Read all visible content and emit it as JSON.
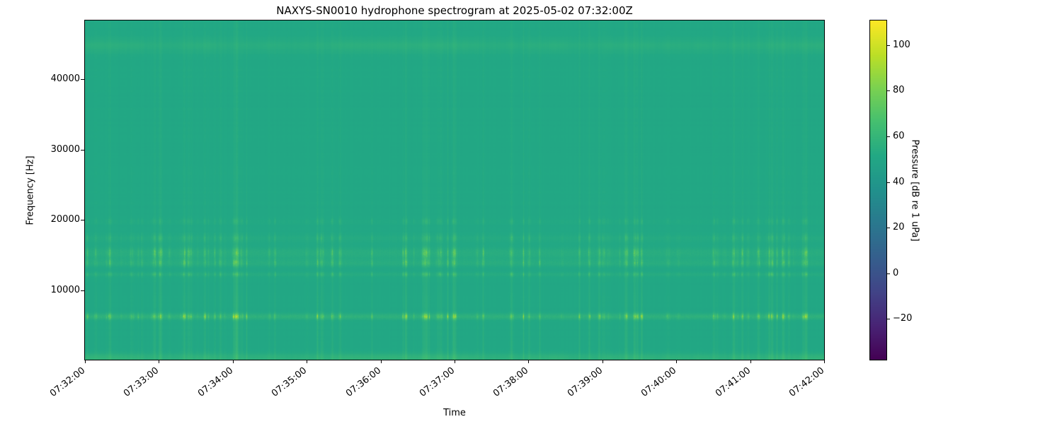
{
  "figure": {
    "background": "#ffffff",
    "text_color": "#000000"
  },
  "chart_data": {
    "type": "heatmap",
    "subtype": "spectrogram",
    "title": "NAXYS-SN0010 hydrophone spectrogram at 2025-05-02 07:32:00Z",
    "xlabel": "Time",
    "ylabel": "Frequency [Hz]",
    "x_tick_labels": [
      "07:32:00",
      "07:33:00",
      "07:34:00",
      "07:35:00",
      "07:36:00",
      "07:37:00",
      "07:38:00",
      "07:39:00",
      "07:40:00",
      "07:41:00",
      "07:42:00"
    ],
    "x_tick_interval_s": 60,
    "duration_s": 600,
    "y_ticks": [
      10000,
      20000,
      30000,
      40000
    ],
    "y_tick_labels": [
      "10000",
      "20000",
      "30000",
      "40000"
    ],
    "freq_axis_range_hz": [
      150,
      48350
    ],
    "grid": false,
    "colorbar": {
      "label": "Pressure [dB re 1 uPa]",
      "ticks": [
        100,
        80,
        60,
        40,
        20,
        0,
        -20
      ],
      "tick_labels": [
        "100",
        "80",
        "60",
        "40",
        "20",
        "0",
        "−20"
      ],
      "vmin": -37.9,
      "vmax": 110.8,
      "colormap": "viridis"
    },
    "background_level_db": 51,
    "bands": [
      {
        "name": "tonal-6.2kHz",
        "center_hz": 6250,
        "sigma_hz": 280,
        "peak_db": 33,
        "speckle": true
      },
      {
        "name": "tonal-12.3kHz",
        "center_hz": 12250,
        "sigma_hz": 200,
        "peak_db": 14,
        "speckle": true
      },
      {
        "name": "tonal-13.9kHz",
        "center_hz": 13900,
        "sigma_hz": 350,
        "peak_db": 19,
        "speckle": true
      },
      {
        "name": "tonal-15.3kHz",
        "center_hz": 15300,
        "sigma_hz": 500,
        "peak_db": 20,
        "speckle": true
      },
      {
        "name": "tonal-17.4kHz",
        "center_hz": 17400,
        "sigma_hz": 400,
        "peak_db": 9,
        "speckle": true
      },
      {
        "name": "tonal-19.8kHz",
        "center_hz": 19800,
        "sigma_hz": 300,
        "peak_db": 6,
        "speckle": true
      },
      {
        "name": "band-44.8kHz",
        "center_hz": 44800,
        "sigma_hz": 700,
        "peak_db": 4,
        "speckle": false
      },
      {
        "name": "low-freq-floor",
        "center_hz": 300,
        "sigma_hz": 500,
        "peak_db": 6,
        "speckle": false
      }
    ],
    "transients": {
      "description": "quasi-periodic broadband vertical striations (impulsive clicks)",
      "mean_interval_s": 5.5,
      "interval_jitter_s": 4.0,
      "broadband_boost_db": 6,
      "strong_event_probability": 0.07,
      "strong_event_extra_boost": 0.8,
      "quiet_gap_probability": 0.12
    },
    "viridis_stops": [
      {
        "t": 0.0,
        "c": "#440154"
      },
      {
        "t": 0.1,
        "c": "#482475"
      },
      {
        "t": 0.2,
        "c": "#414487"
      },
      {
        "t": 0.3,
        "c": "#355f8d"
      },
      {
        "t": 0.4,
        "c": "#2a788e"
      },
      {
        "t": 0.5,
        "c": "#21918c"
      },
      {
        "t": 0.6,
        "c": "#22a884"
      },
      {
        "t": 0.7,
        "c": "#44bf70"
      },
      {
        "t": 0.8,
        "c": "#7ad151"
      },
      {
        "t": 0.9,
        "c": "#bddf26"
      },
      {
        "t": 1.0,
        "c": "#fde725"
      }
    ]
  }
}
